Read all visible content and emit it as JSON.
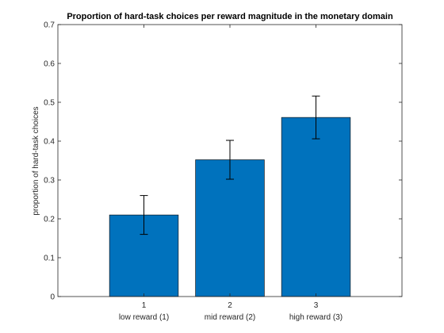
{
  "chart_data": {
    "type": "bar",
    "title": "Proportion of hard-task choices per reward magnitude in the monetary domain",
    "xlabel": "",
    "ylabel": "proportion of hard-task choices",
    "x": [
      1,
      2,
      3
    ],
    "xlim": [
      0,
      4
    ],
    "categories": [
      "low reward (1)",
      "mid reward (2)",
      "high reward (3)"
    ],
    "values": [
      0.21,
      0.352,
      0.461
    ],
    "errors": [
      0.05,
      0.05,
      0.055
    ],
    "ylim": [
      0,
      0.7
    ],
    "yticks": [
      0,
      0.1,
      0.2,
      0.3,
      0.4,
      0.5,
      0.6,
      0.7
    ],
    "ytick_labels": [
      "0",
      "0.1",
      "0.2",
      "0.3",
      "0.4",
      "0.5",
      "0.6",
      "0.7"
    ],
    "xtick_labels": [
      "1",
      "2",
      "3"
    ],
    "grid": false,
    "legend": "none",
    "colors": {
      "bar": "#0072BD",
      "error_bar": "#000000",
      "axis": "#262626"
    }
  }
}
